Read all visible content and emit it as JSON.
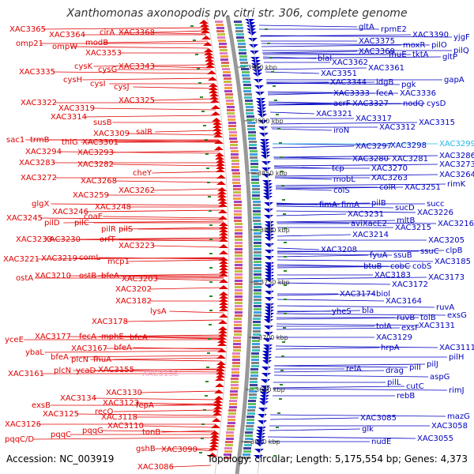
{
  "title": "Xanthomonas axonopodis pv. citri str. 306, complete genome",
  "accession": "Accession: NC_003919",
  "topology": "Topology: circular; Length: 5,175,554 bp; Genes: 4,373",
  "colors": {
    "left_strand": "#e00000",
    "right_strand": "#0000c0",
    "highlight_left": "#f2a0c8",
    "highlight_right": "#22b8ee",
    "backbone": "#999999"
  },
  "kbp_marks": [
    "3950 kbp",
    "3900 kbp",
    "3850 kbp",
    "3800 kbp",
    "3750 kbp",
    "3700 kbp",
    "3650 kbp",
    "3600 kbp"
  ],
  "left_labels": [
    [
      "XAC3365",
      12,
      40
    ],
    [
      "XAC3364",
      62,
      47
    ],
    [
      "cirA",
      126,
      44
    ],
    [
      "XAC3368",
      150,
      44
    ],
    [
      "omp21",
      20,
      58
    ],
    [
      "ompW",
      66,
      62
    ],
    [
      "modB",
      108,
      57
    ],
    [
      "XAC3353",
      108,
      70
    ],
    [
      "XAC3335",
      24,
      94
    ],
    [
      "cysK",
      94,
      87
    ],
    [
      "cysG",
      124,
      91
    ],
    [
      "XAC3343",
      150,
      87
    ],
    [
      "cysH",
      80,
      104
    ],
    [
      "cysI",
      114,
      109
    ],
    [
      "cysJ",
      144,
      113
    ],
    [
      "XAC3325",
      150,
      130
    ],
    [
      "XAC3322",
      26,
      133
    ],
    [
      "XAC3319",
      74,
      140
    ],
    [
      "XAC3314",
      64,
      151
    ],
    [
      "susB",
      118,
      158
    ],
    [
      "XAC3309",
      118,
      172
    ],
    [
      "salR",
      172,
      170
    ],
    [
      "sac1",
      8,
      180
    ],
    [
      "trmB",
      38,
      180
    ],
    [
      "thiG",
      78,
      183
    ],
    [
      "XAC3301",
      104,
      183
    ],
    [
      "XAC3294",
      32,
      195
    ],
    [
      "XAC3293",
      98,
      196
    ],
    [
      "XAC3283",
      24,
      209
    ],
    [
      "XAC3282",
      98,
      211
    ],
    [
      "cheY",
      168,
      222
    ],
    [
      "XAC3272",
      26,
      228
    ],
    [
      "XAC3268",
      102,
      232
    ],
    [
      "XAC3262",
      150,
      244
    ],
    [
      "XAC3259",
      92,
      250
    ],
    [
      "glgX",
      40,
      261
    ],
    [
      "XAC3246",
      66,
      271
    ],
    [
      "XAC3248",
      120,
      265
    ],
    [
      "XAC3245",
      8,
      279
    ],
    [
      "pilD",
      56,
      285
    ],
    [
      "pilC",
      94,
      285
    ],
    [
      "coaE",
      106,
      277
    ],
    [
      "pilR",
      128,
      293
    ],
    [
      "pilS",
      150,
      293
    ],
    [
      "XAC3233",
      20,
      306
    ],
    [
      "XAC3230",
      56,
      306
    ],
    [
      "orfT",
      126,
      306
    ],
    [
      "XAC3223",
      150,
      314
    ],
    [
      "XAC3221",
      4,
      331
    ],
    [
      "XAC3219",
      52,
      330
    ],
    [
      "comL",
      100,
      329
    ],
    [
      "mcp1",
      136,
      334
    ],
    [
      "ostA",
      20,
      355
    ],
    [
      "XAC3210",
      44,
      352
    ],
    [
      "ostB",
      100,
      352
    ],
    [
      "bfeA",
      128,
      352
    ],
    [
      "XAC3203",
      154,
      356
    ],
    [
      "XAC3202",
      146,
      369
    ],
    [
      "XAC3182",
      146,
      384
    ],
    [
      "lysA",
      190,
      397
    ],
    [
      "XAC3178",
      116,
      410
    ],
    [
      "yceE",
      6,
      433
    ],
    [
      "XAC3177",
      44,
      429
    ],
    [
      "fecA",
      100,
      429
    ],
    [
      "mphE",
      128,
      429
    ],
    [
      "bfeA",
      164,
      430
    ],
    [
      "ybaL",
      32,
      449
    ],
    [
      "XAC3167",
      90,
      444
    ],
    [
      "bfeA",
      144,
      443
    ],
    [
      "bfeA",
      64,
      455
    ],
    [
      "XAC3161",
      10,
      476
    ],
    [
      "plcN",
      68,
      472
    ],
    [
      "ycaD",
      96,
      472
    ],
    [
      "XAC3155",
      124,
      471
    ],
    [
      "plcN",
      90,
      458
    ],
    [
      "fhuA",
      118,
      458
    ],
    [
      "XAC3138",
      180,
      476,
      "hl"
    ],
    [
      "XAC3134",
      76,
      507
    ],
    [
      "XAC3130",
      134,
      500
    ],
    [
      "exsB",
      40,
      516
    ],
    [
      "XAC3123",
      130,
      513
    ],
    [
      "fepA",
      172,
      516
    ],
    [
      "XAC3126",
      6,
      540
    ],
    [
      "XAC3125",
      54,
      527
    ],
    [
      "recQ",
      120,
      524
    ],
    [
      "XAC3118",
      128,
      531
    ],
    [
      "XAC3110",
      136,
      542
    ],
    [
      "pqqC/D",
      6,
      559
    ],
    [
      "pqqC",
      64,
      553
    ],
    [
      "pqqG",
      104,
      548
    ],
    [
      "tonB",
      180,
      550
    ],
    [
      "gshB",
      172,
      571
    ],
    [
      "XAC3090",
      204,
      572
    ],
    [
      "XAC3086",
      174,
      594
    ]
  ],
  "right_labels": [
    [
      "gltA",
      454,
      37
    ],
    [
      "rpmE2",
      482,
      40
    ],
    [
      "XAC3390",
      522,
      47
    ],
    [
      "yjgF",
      574,
      50
    ],
    [
      "XAC3375",
      454,
      55
    ],
    [
      "moxR",
      510,
      60
    ],
    [
      "pilO",
      546,
      60
    ],
    [
      "pilQ",
      574,
      67
    ],
    [
      "XAC3369",
      454,
      68
    ],
    [
      "fhuE",
      492,
      72
    ],
    [
      "tktA",
      522,
      72
    ],
    [
      "gltP",
      560,
      75
    ],
    [
      "blaI",
      402,
      77
    ],
    [
      "XAC3362",
      420,
      82
    ],
    [
      "XAC3361",
      466,
      89
    ],
    [
      "XAC3351",
      406,
      96
    ],
    [
      "XAC3344",
      418,
      107
    ],
    [
      "idgB",
      476,
      107
    ],
    [
      "pgk",
      508,
      110
    ],
    [
      "gapA",
      562,
      104
    ],
    [
      "XAC3333",
      422,
      121
    ],
    [
      "fecA",
      476,
      121
    ],
    [
      "XAC3336",
      506,
      121
    ],
    [
      "acrF",
      422,
      134
    ],
    [
      "XAC3327",
      446,
      134
    ],
    [
      "nodQ",
      510,
      134
    ],
    [
      "cysD",
      540,
      134
    ],
    [
      "XAC3321",
      400,
      147
    ],
    [
      "XAC3317",
      450,
      153
    ],
    [
      "XAC3315",
      530,
      158
    ],
    [
      "iroN",
      422,
      168
    ],
    [
      "XAC3312",
      480,
      164
    ],
    [
      "XAC3297",
      450,
      188
    ],
    [
      "XAC3298",
      494,
      187
    ],
    [
      "XAC3299",
      556,
      185,
      "hl"
    ],
    [
      "XAC3286",
      556,
      200
    ],
    [
      "XAC3280",
      446,
      204
    ],
    [
      "XAC3281",
      496,
      204
    ],
    [
      "XAC3273",
      556,
      211
    ],
    [
      "tcp",
      420,
      216
    ],
    [
      "XAC3270",
      470,
      216
    ],
    [
      "XAC3264",
      556,
      224
    ],
    [
      "mobL",
      422,
      230
    ],
    [
      "XAC3263",
      470,
      228
    ],
    [
      "rimK",
      566,
      236
    ],
    [
      "colS",
      422,
      244
    ],
    [
      "colR",
      480,
      240
    ],
    [
      "XAC3251",
      512,
      240
    ],
    [
      "fimA",
      404,
      262
    ],
    [
      "fimA",
      432,
      262
    ],
    [
      "pilB",
      470,
      260
    ],
    [
      "sucD",
      500,
      266
    ],
    [
      "succ",
      540,
      261
    ],
    [
      "XAC3231",
      440,
      274
    ],
    [
      "XAC3226",
      528,
      272
    ],
    [
      "aviXacE2",
      444,
      286
    ],
    [
      "mltB",
      502,
      282
    ],
    [
      "XAC3216",
      554,
      286
    ],
    [
      "XAC3215",
      500,
      291
    ],
    [
      "XAC3214",
      446,
      300
    ],
    [
      "XAC3208",
      406,
      319
    ],
    [
      "XAC3205",
      542,
      307
    ],
    [
      "fyuA",
      468,
      326
    ],
    [
      "ssuB",
      498,
      326
    ],
    [
      "ssuC",
      532,
      321
    ],
    [
      "clpB",
      564,
      320
    ],
    [
      "btuB",
      460,
      340
    ],
    [
      "cobC",
      494,
      340
    ],
    [
      "cobS",
      522,
      340
    ],
    [
      "XAC3185",
      550,
      334
    ],
    [
      "XAC3183",
      474,
      351
    ],
    [
      "XAC3173",
      542,
      354
    ],
    [
      "XAC3172",
      496,
      363
    ],
    [
      "XAC3174",
      430,
      375
    ],
    [
      "biol",
      476,
      375
    ],
    [
      "XAC3164",
      488,
      384
    ],
    [
      "yheS",
      420,
      397
    ],
    [
      "bla",
      458,
      396
    ],
    [
      "ruvA",
      552,
      392
    ],
    [
      "ruvB",
      502,
      405
    ],
    [
      "tolB",
      532,
      405
    ],
    [
      "exsG",
      566,
      402
    ],
    [
      "tolA",
      476,
      416
    ],
    [
      "exsF",
      508,
      418
    ],
    [
      "XAC3131",
      530,
      415
    ],
    [
      "XAC3129",
      476,
      430
    ],
    [
      "hrpA",
      482,
      443
    ],
    [
      "XAC3111",
      556,
      443
    ],
    [
      "relA",
      438,
      470
    ],
    [
      "drag",
      488,
      472
    ],
    [
      "pilI",
      518,
      468
    ],
    [
      "pilH",
      568,
      455
    ],
    [
      "pilJ",
      540,
      464
    ],
    [
      "rimJ",
      568,
      497
    ],
    [
      "pilL",
      490,
      487
    ],
    [
      "cutC",
      514,
      492
    ],
    [
      "aspG",
      544,
      480
    ],
    [
      "rebB",
      502,
      504
    ],
    [
      "XAC3085",
      456,
      532
    ],
    [
      "mazG",
      566,
      530
    ],
    [
      "XAC3058",
      546,
      542
    ],
    [
      "glk",
      458,
      546
    ],
    [
      "XAC3055",
      528,
      558
    ],
    [
      "nudE",
      470,
      562
    ]
  ]
}
